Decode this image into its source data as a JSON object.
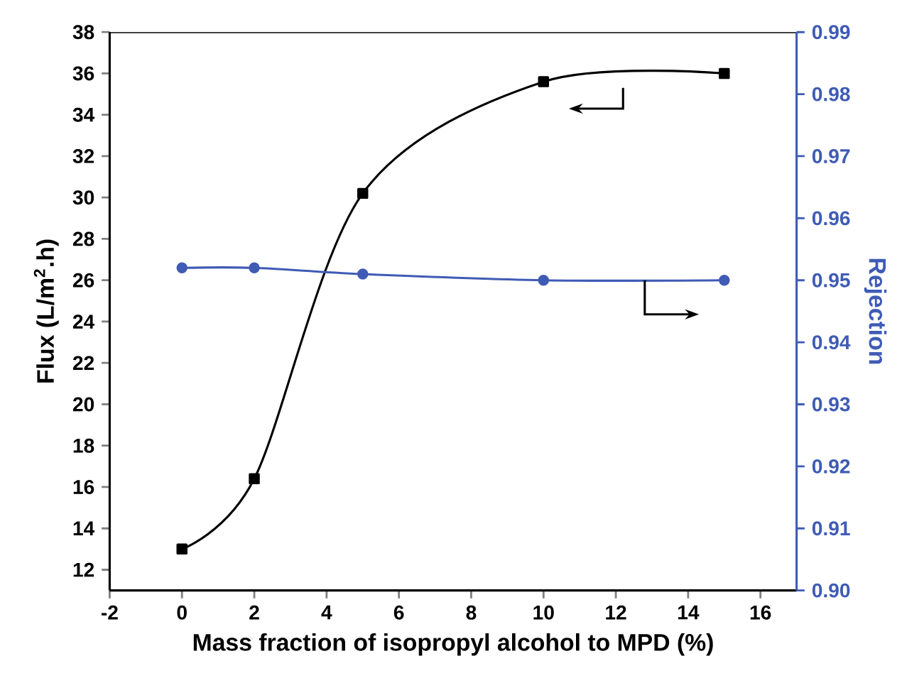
{
  "chart_data": {
    "type": "line",
    "xlabel": "Mass fraction of isopropyl alcohol to MPD (%)",
    "ylabel": "Flux (L/m$^{2}$.h)",
    "y2label": "Rejection",
    "x": [
      0,
      2,
      5,
      10,
      15
    ],
    "series": [
      {
        "color": "#000000",
        "marker": "square",
        "values": [
          13.0,
          16.4,
          30.2,
          35.6,
          36.0
        ]
      },
      {
        "color": "#3f5bb5",
        "marker": "circle",
        "axis": "y2",
        "values": [
          0.952,
          0.952,
          0.951,
          0.95,
          0.95
        ]
      }
    ],
    "xlim": [
      -2,
      17
    ],
    "xticks": [
      -2,
      0,
      2,
      4,
      6,
      8,
      10,
      12,
      14,
      16
    ],
    "ylim": [
      11,
      38
    ],
    "yticks": [
      12,
      14,
      16,
      18,
      20,
      22,
      24,
      26,
      28,
      30,
      32,
      34,
      36,
      38
    ],
    "y2lim": [
      0.9,
      0.99
    ],
    "y2ticks": [
      {
        "value": 0.9,
        "label": "0.90"
      },
      0.91,
      0.92,
      0.93,
      0.94,
      0.95,
      0.96,
      0.97,
      0.98,
      0.99
    ],
    "grid": false,
    "legend": false
  }
}
